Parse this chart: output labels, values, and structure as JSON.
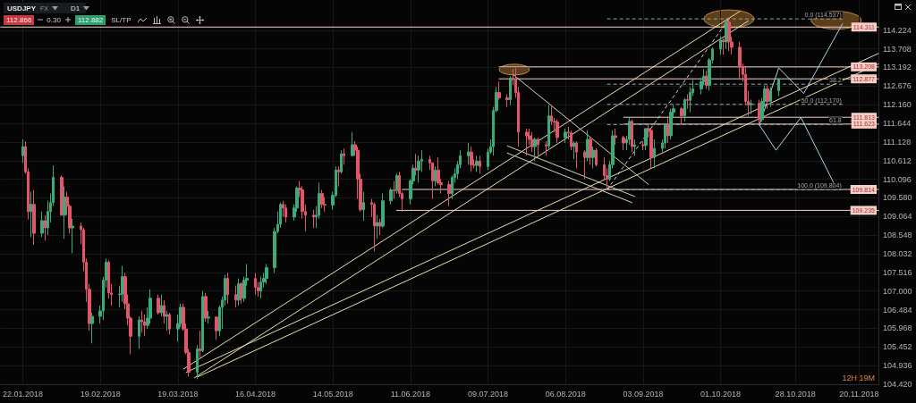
{
  "chart_data": {
    "type": "candlestick",
    "title": "USDJPY",
    "annotations": [
      "FX",
      "D1",
      "112.866",
      "0.30",
      "112.882",
      "SL/TP",
      "12H 19M",
      {
        "text": "0.0 (114.537)",
        "x": "2018-11-14",
        "y": 114.537
      },
      {
        "text": "38.2",
        "x": "2018-11-14",
        "y": 112.729
      },
      {
        "text": "50.0 (112.170)",
        "x": "2018-11-14",
        "y": 112.17
      },
      {
        "text": "61.8",
        "x": "2018-11-14",
        "y": 111.612
      },
      {
        "text": "100.0 (109.804)",
        "x": "2018-11-14",
        "y": 109.804
      }
    ],
    "x": [
      "2018-01-22",
      "2018-01-23",
      "2018-01-24",
      "2018-01-25",
      "2018-01-26",
      "2018-01-29",
      "2018-01-30",
      "2018-01-31",
      "2018-02-01",
      "2018-02-02",
      "2018-02-05",
      "2018-02-06",
      "2018-02-07",
      "2018-02-08",
      "2018-02-09",
      "2018-02-12",
      "2018-02-13",
      "2018-02-14",
      "2018-02-15",
      "2018-02-16",
      "2018-02-19",
      "2018-02-20",
      "2018-02-21",
      "2018-02-22",
      "2018-02-23",
      "2018-02-26",
      "2018-02-27",
      "2018-02-28",
      "2018-03-01",
      "2018-03-02",
      "2018-03-05",
      "2018-03-06",
      "2018-03-07",
      "2018-03-08",
      "2018-03-09",
      "2018-03-12",
      "2018-03-13",
      "2018-03-14",
      "2018-03-15",
      "2018-03-16",
      "2018-03-19",
      "2018-03-20",
      "2018-03-21",
      "2018-03-22",
      "2018-03-23",
      "2018-03-26",
      "2018-03-27",
      "2018-03-28",
      "2018-03-29",
      "2018-03-30",
      "2018-04-02",
      "2018-04-03",
      "2018-04-04",
      "2018-04-05",
      "2018-04-06",
      "2018-04-09",
      "2018-04-10",
      "2018-04-11",
      "2018-04-12",
      "2018-04-13",
      "2018-04-16",
      "2018-04-17",
      "2018-04-18",
      "2018-04-19",
      "2018-04-20",
      "2018-04-23",
      "2018-04-24",
      "2018-04-25",
      "2018-04-26",
      "2018-04-27",
      "2018-04-30",
      "2018-05-01",
      "2018-05-02",
      "2018-05-03",
      "2018-05-04",
      "2018-05-07",
      "2018-05-08",
      "2018-05-09",
      "2018-05-10",
      "2018-05-11",
      "2018-05-14",
      "2018-05-15",
      "2018-05-16",
      "2018-05-17",
      "2018-05-18",
      "2018-05-21",
      "2018-05-22",
      "2018-05-23",
      "2018-05-24",
      "2018-05-25",
      "2018-05-28",
      "2018-05-29",
      "2018-05-30",
      "2018-05-31",
      "2018-06-01",
      "2018-06-04",
      "2018-06-05",
      "2018-06-06",
      "2018-06-07",
      "2018-06-08",
      "2018-06-11",
      "2018-06-12",
      "2018-06-13",
      "2018-06-14",
      "2018-06-15",
      "2018-06-18",
      "2018-06-19",
      "2018-06-20",
      "2018-06-21",
      "2018-06-22",
      "2018-06-25",
      "2018-06-26",
      "2018-06-27",
      "2018-06-28",
      "2018-06-29",
      "2018-07-02",
      "2018-07-03",
      "2018-07-04",
      "2018-07-05",
      "2018-07-06",
      "2018-07-09",
      "2018-07-10",
      "2018-07-11",
      "2018-07-12",
      "2018-07-13",
      "2018-07-16",
      "2018-07-17",
      "2018-07-18",
      "2018-07-19",
      "2018-07-20",
      "2018-07-23",
      "2018-07-24",
      "2018-07-25",
      "2018-07-26",
      "2018-07-27",
      "2018-07-30",
      "2018-07-31",
      "2018-08-01",
      "2018-08-02",
      "2018-08-03",
      "2018-08-06",
      "2018-08-07",
      "2018-08-08",
      "2018-08-09",
      "2018-08-10",
      "2018-08-13",
      "2018-08-14",
      "2018-08-15",
      "2018-08-16",
      "2018-08-17",
      "2018-08-20",
      "2018-08-21",
      "2018-08-22",
      "2018-08-23",
      "2018-08-24",
      "2018-08-27",
      "2018-08-28",
      "2018-08-29",
      "2018-08-30",
      "2018-08-31",
      "2018-09-03",
      "2018-09-04",
      "2018-09-05",
      "2018-09-06",
      "2018-09-07",
      "2018-09-10",
      "2018-09-11",
      "2018-09-12",
      "2018-09-13",
      "2018-09-14",
      "2018-09-17",
      "2018-09-18",
      "2018-09-19",
      "2018-09-20",
      "2018-09-21",
      "2018-09-24",
      "2018-09-25",
      "2018-09-26",
      "2018-09-27",
      "2018-09-28",
      "2018-10-01",
      "2018-10-02",
      "2018-10-03",
      "2018-10-04",
      "2018-10-05",
      "2018-10-08",
      "2018-10-09",
      "2018-10-10",
      "2018-10-11",
      "2018-10-12",
      "2018-10-15",
      "2018-10-16",
      "2018-10-17",
      "2018-10-18",
      "2018-10-19",
      "2018-10-22"
    ],
    "ohlc": [
      [
        110.75,
        111.2,
        110.55,
        111.0
      ],
      [
        111.0,
        111.15,
        110.25,
        110.3
      ],
      [
        110.3,
        110.4,
        108.98,
        109.2
      ],
      [
        109.2,
        109.75,
        108.5,
        109.4
      ],
      [
        109.4,
        109.8,
        108.28,
        108.6
      ],
      [
        108.6,
        109.2,
        108.5,
        108.95
      ],
      [
        108.95,
        109.1,
        108.4,
        108.75
      ],
      [
        108.75,
        109.5,
        108.55,
        109.2
      ],
      [
        109.2,
        109.7,
        108.9,
        109.45
      ],
      [
        109.45,
        110.48,
        109.35,
        110.15
      ],
      [
        110.15,
        110.2,
        109.1,
        109.1
      ],
      [
        109.1,
        109.9,
        108.45,
        109.6
      ],
      [
        109.6,
        109.75,
        109.1,
        109.35
      ],
      [
        109.35,
        109.4,
        108.6,
        108.75
      ],
      [
        108.75,
        109.0,
        108.05,
        108.8
      ],
      [
        108.8,
        108.9,
        108.3,
        108.7
      ],
      [
        108.7,
        108.75,
        107.55,
        107.8
      ],
      [
        107.8,
        107.9,
        106.7,
        107.05
      ],
      [
        107.05,
        107.2,
        105.9,
        106.1
      ],
      [
        106.1,
        106.4,
        105.55,
        106.3
      ],
      [
        106.3,
        106.6,
        106.1,
        106.45
      ],
      [
        106.45,
        107.4,
        106.2,
        107.3
      ],
      [
        107.3,
        107.9,
        107.1,
        107.8
      ],
      [
        107.8,
        107.85,
        106.8,
        106.95
      ],
      [
        106.95,
        107.2,
        106.6,
        106.9
      ],
      [
        106.9,
        107.15,
        106.55,
        106.92
      ],
      [
        106.92,
        107.7,
        106.7,
        107.4
      ],
      [
        107.4,
        107.5,
        106.5,
        106.65
      ],
      [
        106.65,
        106.9,
        106.05,
        106.25
      ],
      [
        106.25,
        106.3,
        105.25,
        105.75
      ],
      [
        105.75,
        106.3,
        105.4,
        106.2
      ],
      [
        106.2,
        106.45,
        105.85,
        106.15
      ],
      [
        106.15,
        106.35,
        105.75,
        106.05
      ],
      [
        106.05,
        106.55,
        105.95,
        106.25
      ],
      [
        106.25,
        107.05,
        106.1,
        106.8
      ],
      [
        106.8,
        106.9,
        106.35,
        106.4
      ],
      [
        106.4,
        106.9,
        106.3,
        106.6
      ],
      [
        106.6,
        106.75,
        106.1,
        106.3
      ],
      [
        106.3,
        106.45,
        105.9,
        106.35
      ],
      [
        106.35,
        106.4,
        105.8,
        105.95
      ],
      [
        105.95,
        106.35,
        105.6,
        106.1
      ],
      [
        106.1,
        106.65,
        106.0,
        106.55
      ],
      [
        106.55,
        106.65,
        105.9,
        105.95
      ],
      [
        105.95,
        106.1,
        105.25,
        105.3
      ],
      [
        105.3,
        105.4,
        104.63,
        104.75
      ],
      [
        104.75,
        105.5,
        104.56,
        105.4
      ],
      [
        105.4,
        105.9,
        105.15,
        105.35
      ],
      [
        105.35,
        107.0,
        105.3,
        106.85
      ],
      [
        106.85,
        106.95,
        106.15,
        106.25
      ],
      [
        106.25,
        106.45,
        106.1,
        106.28
      ],
      [
        106.28,
        106.3,
        105.65,
        105.9
      ],
      [
        105.9,
        106.6,
        105.75,
        106.55
      ],
      [
        106.55,
        106.85,
        105.95,
        106.75
      ],
      [
        106.75,
        107.45,
        106.6,
        107.35
      ],
      [
        107.35,
        107.5,
        106.65,
        106.9
      ],
      [
        106.9,
        107.15,
        106.55,
        106.75
      ],
      [
        106.75,
        107.35,
        106.6,
        107.2
      ],
      [
        107.2,
        107.25,
        106.65,
        106.8
      ],
      [
        106.8,
        107.4,
        106.7,
        107.3
      ],
      [
        107.3,
        107.75,
        107.15,
        107.35
      ],
      [
        107.35,
        107.5,
        106.9,
        107.1
      ],
      [
        107.1,
        107.25,
        106.85,
        107.0
      ],
      [
        107.0,
        107.4,
        106.8,
        107.25
      ],
      [
        107.25,
        107.5,
        107.1,
        107.35
      ],
      [
        107.35,
        107.75,
        107.2,
        107.65
      ],
      [
        107.65,
        108.75,
        107.5,
        108.65
      ],
      [
        108.65,
        109.2,
        108.6,
        108.85
      ],
      [
        108.85,
        109.45,
        108.75,
        109.4
      ],
      [
        109.4,
        109.5,
        109.05,
        109.3
      ],
      [
        109.3,
        109.4,
        108.9,
        109.05
      ],
      [
        109.05,
        109.4,
        108.95,
        109.3
      ],
      [
        109.3,
        109.9,
        109.2,
        109.85
      ],
      [
        109.85,
        110.05,
        109.6,
        109.8
      ],
      [
        109.8,
        109.9,
        109.0,
        109.2
      ],
      [
        109.2,
        109.4,
        108.65,
        109.1
      ],
      [
        109.1,
        109.25,
        108.75,
        109.05
      ],
      [
        109.05,
        109.35,
        108.75,
        109.1
      ],
      [
        109.1,
        110.0,
        109.0,
        109.7
      ],
      [
        109.7,
        109.8,
        109.3,
        109.4
      ],
      [
        109.4,
        109.6,
        109.2,
        109.38
      ],
      [
        109.38,
        109.75,
        109.25,
        109.65
      ],
      [
        109.65,
        110.45,
        109.6,
        110.35
      ],
      [
        110.35,
        110.45,
        109.9,
        110.3
      ],
      [
        110.3,
        110.9,
        110.25,
        110.8
      ],
      [
        110.8,
        110.95,
        110.5,
        110.75
      ],
      [
        110.75,
        111.4,
        110.75,
        111.05
      ],
      [
        111.05,
        111.15,
        110.75,
        110.9
      ],
      [
        110.9,
        111.0,
        109.55,
        110.1
      ],
      [
        110.1,
        110.25,
        109.2,
        109.25
      ],
      [
        109.25,
        109.75,
        108.95,
        109.45
      ],
      [
        109.45,
        109.55,
        109.05,
        109.4
      ],
      [
        109.4,
        109.45,
        108.1,
        108.8
      ],
      [
        108.8,
        109.1,
        108.45,
        108.9
      ],
      [
        108.9,
        109.0,
        108.55,
        108.8
      ],
      [
        108.8,
        109.7,
        108.75,
        109.5
      ],
      [
        109.5,
        109.85,
        109.4,
        109.8
      ],
      [
        109.8,
        110.05,
        109.55,
        109.78
      ],
      [
        109.78,
        110.25,
        109.7,
        110.2
      ],
      [
        110.2,
        110.3,
        109.6,
        109.7
      ],
      [
        109.7,
        109.75,
        109.2,
        109.55
      ],
      [
        109.55,
        110.1,
        109.4,
        110.05
      ],
      [
        110.05,
        110.5,
        109.95,
        110.4
      ],
      [
        110.4,
        110.8,
        110.2,
        110.35
      ],
      [
        110.35,
        110.75,
        110.0,
        110.6
      ],
      [
        110.6,
        110.9,
        110.3,
        110.65
      ],
      [
        110.65,
        110.75,
        110.35,
        110.55
      ],
      [
        110.55,
        110.55,
        109.55,
        110.05
      ],
      [
        110.05,
        110.45,
        109.9,
        110.35
      ],
      [
        110.35,
        110.7,
        109.95,
        110.0
      ],
      [
        110.0,
        110.1,
        109.7,
        109.95
      ],
      [
        109.95,
        110.05,
        109.35,
        109.7
      ],
      [
        109.7,
        110.2,
        109.55,
        110.15
      ],
      [
        110.15,
        110.4,
        110.0,
        110.25
      ],
      [
        110.25,
        110.6,
        110.1,
        110.5
      ],
      [
        110.5,
        110.9,
        110.4,
        110.75
      ],
      [
        110.75,
        111.1,
        110.5,
        110.85
      ],
      [
        110.85,
        111.0,
        110.3,
        110.5
      ],
      [
        110.5,
        110.65,
        110.4,
        110.48
      ],
      [
        110.48,
        110.75,
        110.3,
        110.6
      ],
      [
        110.6,
        110.75,
        110.25,
        110.45
      ],
      [
        110.45,
        110.95,
        110.35,
        110.85
      ],
      [
        110.85,
        111.2,
        110.8,
        111.0
      ],
      [
        111.0,
        112.1,
        110.75,
        112.0
      ],
      [
        112.0,
        112.65,
        111.95,
        112.5
      ],
      [
        112.5,
        112.8,
        112.3,
        112.35
      ],
      [
        112.35,
        112.45,
        112.1,
        112.3
      ],
      [
        112.3,
        112.95,
        112.15,
        112.9
      ],
      [
        112.9,
        113.15,
        112.7,
        112.85
      ],
      [
        112.85,
        113.18,
        112.35,
        112.5
      ],
      [
        112.5,
        112.65,
        111.0,
        111.4
      ],
      [
        111.4,
        111.5,
        110.75,
        111.3
      ],
      [
        111.3,
        111.5,
        111.05,
        111.2
      ],
      [
        111.2,
        111.4,
        110.85,
        111.0
      ],
      [
        111.0,
        111.25,
        110.6,
        111.2
      ],
      [
        111.2,
        111.25,
        110.75,
        111.05
      ],
      [
        111.05,
        111.15,
        110.75,
        111.02
      ],
      [
        111.02,
        112.15,
        110.95,
        111.85
      ],
      [
        111.85,
        112.15,
        111.6,
        111.7
      ],
      [
        111.7,
        111.8,
        111.4,
        111.68
      ],
      [
        111.68,
        111.75,
        111.1,
        111.25
      ],
      [
        111.25,
        111.5,
        111.1,
        111.4
      ],
      [
        111.4,
        111.55,
        111.2,
        111.38
      ],
      [
        111.38,
        111.45,
        110.9,
        111.0
      ],
      [
        111.0,
        111.15,
        110.65,
        111.1
      ],
      [
        111.1,
        111.15,
        110.4,
        110.85
      ],
      [
        110.85,
        110.9,
        110.1,
        110.7
      ],
      [
        110.7,
        111.45,
        110.6,
        111.2
      ],
      [
        111.2,
        111.25,
        110.5,
        110.7
      ],
      [
        110.7,
        111.0,
        110.4,
        110.9
      ],
      [
        110.9,
        110.95,
        110.45,
        110.5
      ],
      [
        110.5,
        110.7,
        110.05,
        110.2
      ],
      [
        110.2,
        110.4,
        109.8,
        110.1
      ],
      [
        110.1,
        110.6,
        110.05,
        110.5
      ],
      [
        110.5,
        111.45,
        110.4,
        111.3
      ],
      [
        111.3,
        111.5,
        111.05,
        111.25
      ],
      [
        111.25,
        111.3,
        110.9,
        111.1
      ],
      [
        111.1,
        111.3,
        110.9,
        111.2
      ],
      [
        111.2,
        111.8,
        111.05,
        111.7
      ],
      [
        111.7,
        111.75,
        110.85,
        111.0
      ],
      [
        111.0,
        111.2,
        110.75,
        111.05
      ],
      [
        111.05,
        111.15,
        110.9,
        111.03
      ],
      [
        111.03,
        111.5,
        110.9,
        111.5
      ],
      [
        111.5,
        111.6,
        111.25,
        111.45
      ],
      [
        111.45,
        111.5,
        110.4,
        110.7
      ],
      [
        110.7,
        111.2,
        110.4,
        110.95
      ],
      [
        110.95,
        111.2,
        110.85,
        111.1
      ],
      [
        111.1,
        111.65,
        110.95,
        111.6
      ],
      [
        111.6,
        111.85,
        111.1,
        111.3
      ],
      [
        111.3,
        112.05,
        111.2,
        111.95
      ],
      [
        111.95,
        112.15,
        111.8,
        112.05
      ],
      [
        112.05,
        112.1,
        111.6,
        111.85
      ],
      [
        111.85,
        112.35,
        111.7,
        112.3
      ],
      [
        112.3,
        112.45,
        112.05,
        112.28
      ],
      [
        112.28,
        112.65,
        111.95,
        112.5
      ],
      [
        112.5,
        112.85,
        112.4,
        112.6
      ],
      [
        112.6,
        112.9,
        112.45,
        112.8
      ],
      [
        112.8,
        113.15,
        112.7,
        112.95
      ],
      [
        112.95,
        113.1,
        112.6,
        112.7
      ],
      [
        112.7,
        113.45,
        112.55,
        113.4
      ],
      [
        113.4,
        113.75,
        113.3,
        113.7
      ],
      [
        113.7,
        114.05,
        113.55,
        113.95
      ],
      [
        113.95,
        114.0,
        113.55,
        113.9
      ],
      [
        113.9,
        114.5,
        113.7,
        114.45
      ],
      [
        114.45,
        114.537,
        113.65,
        113.9
      ],
      [
        113.9,
        114.05,
        113.55,
        113.75
      ],
      [
        113.75,
        113.9,
        112.85,
        113.2
      ],
      [
        113.2,
        113.3,
        112.8,
        113.0
      ],
      [
        113.0,
        113.2,
        112.15,
        112.25
      ],
      [
        112.25,
        112.55,
        111.85,
        112.15
      ],
      [
        112.15,
        112.3,
        111.9,
        112.2
      ],
      [
        112.2,
        112.3,
        111.62,
        111.75
      ],
      [
        111.75,
        112.35,
        111.7,
        112.25
      ],
      [
        112.25,
        112.7,
        112.1,
        112.6
      ],
      [
        112.6,
        112.7,
        112.05,
        112.25
      ],
      [
        112.25,
        112.65,
        112.1,
        112.55
      ],
      [
        112.55,
        112.9,
        112.4,
        112.866
      ]
    ],
    "colors": [
      "#3daa7a",
      "#e0566b",
      "#e0566b",
      "#3daa7a",
      "#e0566b",
      "#3daa7a",
      "#e0566b",
      "#3daa7a",
      "#3daa7a",
      "#3daa7a",
      "#e0566b",
      "#3daa7a",
      "#e0566b",
      "#e0566b",
      "#3daa7a",
      "#e0566b",
      "#e0566b",
      "#e0566b",
      "#e0566b",
      "#3daa7a",
      "#3daa7a",
      "#3daa7a",
      "#3daa7a",
      "#e0566b",
      "#e0566b",
      "#3daa7a",
      "#3daa7a",
      "#e0566b",
      "#e0566b",
      "#e0566b",
      "#3daa7a",
      "#e0566b",
      "#e0566b",
      "#3daa7a",
      "#3daa7a",
      "#e0566b",
      "#3daa7a",
      "#e0566b",
      "#3daa7a",
      "#e0566b",
      "#3daa7a",
      "#3daa7a",
      "#e0566b",
      "#e0566b",
      "#e0566b",
      "#3daa7a",
      "#e0566b",
      "#3daa7a",
      "#e0566b",
      "#3daa7a",
      "#e0566b",
      "#3daa7a",
      "#3daa7a",
      "#3daa7a",
      "#e0566b",
      "#e0566b",
      "#3daa7a",
      "#e0566b",
      "#3daa7a",
      "#3daa7a",
      "#e0566b",
      "#e0566b",
      "#3daa7a",
      "#3daa7a",
      "#3daa7a",
      "#3daa7a",
      "#3daa7a",
      "#3daa7a",
      "#e0566b",
      "#e0566b",
      "#3daa7a",
      "#3daa7a",
      "#e0566b",
      "#e0566b",
      "#e0566b",
      "#e0566b",
      "#3daa7a",
      "#3daa7a",
      "#e0566b",
      "#e0566b",
      "#3daa7a",
      "#3daa7a",
      "#e0566b",
      "#3daa7a",
      "#e0566b",
      "#3daa7a",
      "#e0566b",
      "#e0566b",
      "#e0566b",
      "#3daa7a",
      "#e0566b",
      "#e0566b",
      "#3daa7a",
      "#e0566b",
      "#3daa7a",
      "#3daa7a",
      "#e0566b",
      "#3daa7a",
      "#e0566b",
      "#e0566b",
      "#3daa7a",
      "#3daa7a",
      "#e0566b",
      "#3daa7a",
      "#3daa7a",
      "#e0566b",
      "#e0566b",
      "#3daa7a",
      "#e0566b",
      "#e0566b",
      "#e0566b",
      "#3daa7a",
      "#3daa7a",
      "#3daa7a",
      "#3daa7a",
      "#3daa7a",
      "#e0566b",
      "#e0566b",
      "#3daa7a",
      "#e0566b",
      "#3daa7a",
      "#3daa7a",
      "#3daa7a",
      "#3daa7a",
      "#e0566b",
      "#e0566b",
      "#3daa7a",
      "#e0566b",
      "#e0566b",
      "#e0566b",
      "#e0566b",
      "#e0566b",
      "#e0566b",
      "#3daa7a",
      "#e0566b",
      "#e0566b",
      "#3daa7a",
      "#e0566b",
      "#e0566b",
      "#e0566b",
      "#3daa7a",
      "#e0566b",
      "#e0566b",
      "#3daa7a",
      "#e0566b",
      "#e0566b",
      "#3daa7a",
      "#e0566b",
      "#3daa7a",
      "#e0566b",
      "#e0566b",
      "#e0566b",
      "#3daa7a",
      "#3daa7a",
      "#e0566b",
      "#e0566b",
      "#3daa7a",
      "#3daa7a",
      "#e0566b",
      "#3daa7a",
      "#e0566b",
      "#3daa7a",
      "#e0566b",
      "#e0566b",
      "#3daa7a",
      "#3daa7a",
      "#3daa7a",
      "#e0566b",
      "#3daa7a",
      "#3daa7a",
      "#e0566b",
      "#3daa7a",
      "#e0566b",
      "#3daa7a",
      "#3daa7a",
      "#3daa7a",
      "#3daa7a",
      "#e0566b",
      "#3daa7a",
      "#3daa7a",
      "#3daa7a",
      "#e0566b",
      "#3daa7a",
      "#e0566b",
      "#e0566b",
      "#e0566b",
      "#e0566b",
      "#e0566b",
      "#e0566b",
      "#3daa7a",
      "#e0566b",
      "#3daa7a",
      "#3daa7a",
      "#e0566b",
      "#3daa7a",
      "#3daa7a"
    ],
    "series": [
      {
        "type": "line",
        "x": [
          "2018-01-14",
          "2018-11-27"
        ],
        "values": [
          114.311,
          114.311
        ],
        "color": "#f3cfc8",
        "value_labels": [
          null,
          "114.311"
        ]
      },
      {
        "type": "line",
        "x": [
          "2018-07-13",
          "2018-11-27"
        ],
        "values": [
          113.208,
          113.208
        ],
        "color": "#f3cfc8",
        "value_labels": [
          null,
          "113.208"
        ]
      },
      {
        "type": "line",
        "x": [
          "2018-07-13",
          "2018-11-27"
        ],
        "values": [
          112.877,
          112.877
        ],
        "color": "#f3cfc8",
        "value_labels": [
          null,
          "112.877"
        ]
      },
      {
        "type": "line",
        "x": [
          "2018-08-27",
          "2018-11-27"
        ],
        "values": [
          111.813,
          111.813
        ],
        "color": "#f3cfc8",
        "value_labels": [
          null,
          "111.813"
        ]
      },
      {
        "type": "line",
        "x": [
          "2018-08-27",
          "2018-11-27"
        ],
        "values": [
          111.623,
          111.623
        ],
        "color": "#f3cfc8",
        "value_labels": [
          null,
          "111.623"
        ]
      },
      {
        "type": "line",
        "x": [
          "2018-06-08",
          "2018-11-27"
        ],
        "values": [
          109.814,
          109.814
        ],
        "color": "#f3cfc8",
        "value_labels": [
          null,
          "109.814"
        ]
      },
      {
        "type": "line",
        "x": [
          "2018-06-06",
          "2018-11-27"
        ],
        "values": [
          109.235,
          109.235
        ],
        "color": "#f3cfc8",
        "value_labels": [
          null,
          "109.235"
        ]
      },
      {
        "type": "line",
        "x": [
          "2018-08-21",
          "2018-11-14"
        ],
        "values": [
          114.537,
          114.537
        ],
        "color": "#9aa1ad",
        "line_style": "dashed"
      },
      {
        "type": "line",
        "x": [
          "2018-08-21",
          "2018-11-14"
        ],
        "values": [
          112.729,
          112.729
        ],
        "color": "#9aa1ad",
        "line_style": "dashed"
      },
      {
        "type": "line",
        "x": [
          "2018-08-21",
          "2018-11-14"
        ],
        "values": [
          112.17,
          112.17
        ],
        "color": "#9aa1ad",
        "line_style": "dashed"
      },
      {
        "type": "line",
        "x": [
          "2018-08-21",
          "2018-11-14"
        ],
        "values": [
          111.612,
          111.612
        ],
        "color": "#9aa1ad",
        "line_style": "dashed"
      },
      {
        "type": "line",
        "x": [
          "2018-08-21",
          "2018-11-14"
        ],
        "values": [
          109.804,
          109.804
        ],
        "color": "#9aa1ad",
        "line_style": "dashed"
      },
      {
        "type": "line",
        "x": [
          "2018-08-21",
          "2018-10-04"
        ],
        "values": [
          109.804,
          114.537
        ],
        "color": "#c9cdd4",
        "line_style": "dashed"
      },
      {
        "type": "line",
        "x": [
          "2018-03-21",
          "2018-10-08"
        ],
        "values": [
          104.84,
          114.75
        ],
        "color": "#e8dfae"
      },
      {
        "type": "line",
        "x": [
          "2018-03-25",
          "2018-10-11"
        ],
        "values": [
          104.6,
          114.48
        ],
        "color": "#e8dfae"
      },
      {
        "type": "line",
        "x": [
          "2018-03-22",
          "2018-11-27"
        ],
        "values": [
          104.75,
          113.58
        ],
        "color": "#e8dfae"
      },
      {
        "type": "line",
        "x": [
          "2018-03-26",
          "2018-11-27"
        ],
        "values": [
          104.62,
          113.29
        ],
        "color": "#e8dfae"
      },
      {
        "type": "line",
        "x": [
          "2018-07-18",
          "2018-09-05"
        ],
        "values": [
          113.0,
          109.95
        ],
        "color": "#d9d3b8"
      },
      {
        "type": "line",
        "x": [
          "2018-07-16",
          "2018-08-31"
        ],
        "values": [
          111.02,
          109.62
        ],
        "color": "#d9d3b8"
      },
      {
        "type": "line",
        "x": [
          "2018-07-16",
          "2018-08-30"
        ],
        "values": [
          110.82,
          109.45
        ],
        "color": "#d9d3b8"
      },
      {
        "type": "line",
        "x": [
          "2018-10-15",
          "2018-10-22",
          "2018-10-31",
          "2018-11-14"
        ],
        "values": [
          111.6,
          113.18,
          112.47,
          114.4
        ],
        "color": "#a6d4ec"
      },
      {
        "type": "line",
        "x": [
          "2018-10-15",
          "2018-10-21",
          "2018-10-30",
          "2018-11-12"
        ],
        "values": [
          111.6,
          110.9,
          111.81,
          109.82
        ],
        "color": "#a6d4ec"
      }
    ],
    "xlim": [
      "2018-01-14",
      "2018-11-27"
    ],
    "xticks": [
      {
        "value": "2018-01-22",
        "label": "22.01.2018"
      },
      {
        "value": "2018-02-19",
        "label": "19.02.2018"
      },
      {
        "value": "2018-03-19",
        "label": "19.03.2018"
      },
      {
        "value": "2018-04-16",
        "label": "16.04.2018"
      },
      {
        "value": "2018-05-14",
        "label": "14.05.2018"
      },
      {
        "value": "2018-06-11",
        "label": "11.06.2018"
      },
      {
        "value": "2018-07-09",
        "label": "09.07.2018"
      },
      {
        "value": "2018-08-06",
        "label": "06.08.2018"
      },
      {
        "value": "2018-09-03",
        "label": "03.09.2018"
      },
      {
        "value": "2018-10-01",
        "label": "01.10.2018"
      },
      {
        "value": "2018-10-28",
        "label": "28.10.2018"
      },
      {
        "value": "2018-11-20",
        "label": "20.11.2018"
      }
    ],
    "ylim": [
      104.42,
      115.06
    ],
    "yticks": [
      {
        "value": 104.42,
        "label": "104.420"
      },
      104.936,
      105.452,
      105.968,
      106.484,
      {
        "value": 107,
        "label": "107.000"
      },
      107.516,
      108.032,
      108.548,
      109.064,
      {
        "value": 109.58,
        "label": "109.580"
      },
      110.096,
      110.612,
      111.128,
      111.644,
      {
        "value": 112.16,
        "label": "112.160"
      },
      112.676,
      113.192,
      113.708,
      114.224
    ],
    "grid": true
  }
}
